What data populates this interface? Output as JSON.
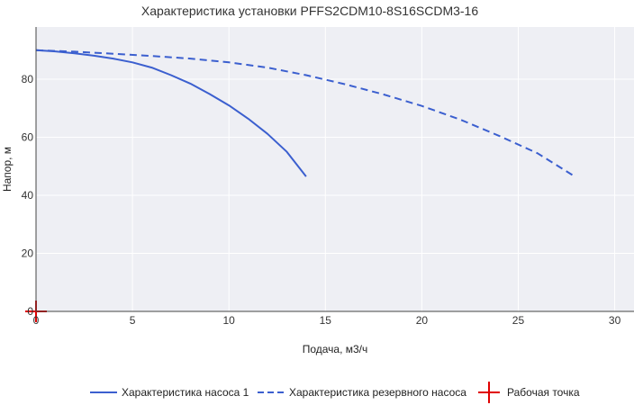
{
  "chart_data": {
    "type": "line",
    "title": "Характеристика установки PFFS2CDM10-8S16SCDM3-16",
    "xlabel": "Подача, м3/ч",
    "ylabel": "Напор, м",
    "xlim": [
      0,
      31
    ],
    "ylim": [
      0,
      98
    ],
    "x_ticks": [
      0,
      5,
      10,
      15,
      20,
      25,
      30
    ],
    "y_ticks": [
      0,
      20,
      40,
      60,
      80
    ],
    "grid": true,
    "legend_position": "bottom",
    "series": [
      {
        "name": "Характеристика насоса 1",
        "style": "solid",
        "color": "#3b5fcf",
        "x": [
          0,
          1,
          2,
          3,
          4,
          5,
          6,
          7,
          8,
          9,
          10,
          11,
          12,
          13,
          14
        ],
        "y": [
          90,
          89.6,
          88.9,
          88.1,
          87.1,
          85.8,
          84.0,
          81.4,
          78.5,
          74.9,
          71.0,
          66.4,
          61.2,
          55.0,
          46.5
        ]
      },
      {
        "name": "Характеристика резервного насоса",
        "style": "dashed",
        "color": "#3b5fcf",
        "x": [
          0,
          2,
          4,
          6,
          8,
          10,
          12,
          14,
          16,
          18,
          20,
          22,
          24,
          26,
          27.8
        ],
        "y": [
          90,
          89.5,
          88.8,
          88.0,
          87.1,
          85.8,
          84.0,
          81.4,
          78.3,
          74.8,
          70.8,
          66.1,
          60.5,
          54.5,
          47
        ]
      },
      {
        "name": "Рабочая точка",
        "style": "marker",
        "color": "#e00000",
        "x": [
          0
        ],
        "y": [
          0
        ]
      }
    ]
  }
}
